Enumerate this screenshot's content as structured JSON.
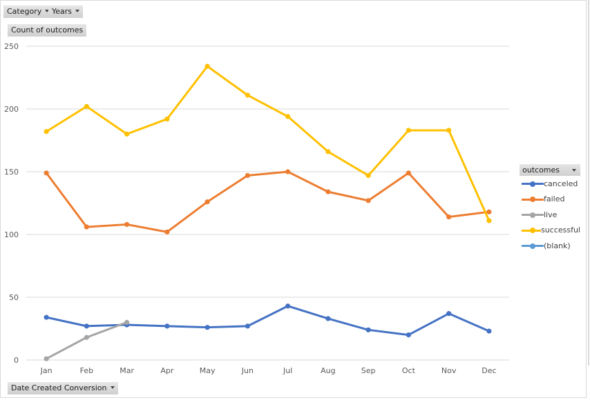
{
  "controls": {
    "category_filter": "Category",
    "years_filter": "Years",
    "value_field": "Count of outcomes",
    "axis_field": "Date Created Conversion"
  },
  "legend": {
    "title": "outcomes",
    "items": [
      {
        "label": "canceled",
        "color": "#4472c4"
      },
      {
        "label": "failed",
        "color": "#ed7d31"
      },
      {
        "label": "live",
        "color": "#a5a5a5"
      },
      {
        "label": "successful",
        "color": "#ffc000"
      },
      {
        "label": "(blank)",
        "color": "#5b9bd5"
      }
    ]
  },
  "chart_data": {
    "type": "line",
    "title": "",
    "xlabel": "Date Created Conversion",
    "ylabel": "Count of outcomes",
    "categories": [
      "Jan",
      "Feb",
      "Mar",
      "Apr",
      "May",
      "Jun",
      "Jul",
      "Aug",
      "Sep",
      "Oct",
      "Nov",
      "Dec"
    ],
    "y_ticks": [
      "0",
      "50",
      "100",
      "150",
      "200",
      "250"
    ],
    "ylim": [
      0,
      250
    ],
    "grid": true,
    "legend_position": "right",
    "series": [
      {
        "name": "canceled",
        "color": "#4472c4",
        "values": [
          34,
          27,
          28,
          27,
          26,
          27,
          43,
          33,
          24,
          20,
          37,
          23
        ]
      },
      {
        "name": "failed",
        "color": "#ed7d31",
        "values": [
          149,
          106,
          108,
          102,
          126,
          147,
          150,
          134,
          127,
          149,
          114,
          118
        ]
      },
      {
        "name": "live",
        "color": "#a5a5a5",
        "values": [
          1,
          18,
          30,
          null,
          null,
          null,
          null,
          null,
          null,
          null,
          null,
          null
        ]
      },
      {
        "name": "successful",
        "color": "#ffc000",
        "values": [
          182,
          202,
          180,
          192,
          234,
          211,
          194,
          166,
          147,
          183,
          183,
          111
        ]
      },
      {
        "name": "(blank)",
        "color": "#5b9bd5",
        "values": [
          null,
          null,
          null,
          null,
          null,
          null,
          null,
          null,
          null,
          null,
          null,
          null
        ]
      }
    ]
  }
}
